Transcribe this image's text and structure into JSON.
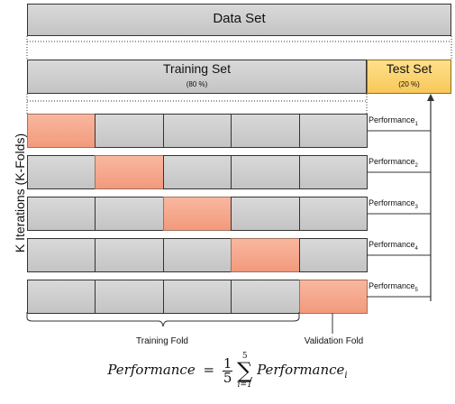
{
  "data_set": {
    "label": "Data Set"
  },
  "training_set": {
    "label": "Training Set",
    "percent": "(80 %)"
  },
  "test_set": {
    "label": "Test Set",
    "percent": "(20 %)"
  },
  "y_axis_label": "K Iterations (K-Folds)",
  "iterations": [
    {
      "highlight_index": 0,
      "performance_label": "Performance",
      "subscript": "1"
    },
    {
      "highlight_index": 1,
      "performance_label": "Performance",
      "subscript": "2"
    },
    {
      "highlight_index": 2,
      "performance_label": "Performance",
      "subscript": "3"
    },
    {
      "highlight_index": 3,
      "performance_label": "Performance",
      "subscript": "4"
    },
    {
      "highlight_index": 4,
      "performance_label": "Performance",
      "subscript": "5"
    }
  ],
  "fold_labels": {
    "training_fold": "Training Fold",
    "validation_fold": "Validation Fold"
  },
  "formula": {
    "lhs": "Performance",
    "equals": "=",
    "fraction_numerator": "1",
    "fraction_denominator": "5",
    "sum_upper": "5",
    "sum_lower": "i=1",
    "term": "Performance",
    "term_subscript": "i"
  },
  "colors": {
    "fold_gray": "#c9c9c9",
    "validation_fold": "#f4a88a",
    "test_set": "#fad46e"
  }
}
